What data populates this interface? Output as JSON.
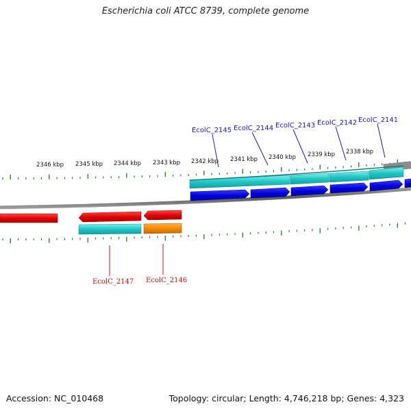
{
  "title": "Escherichia coli ATCC 8739, complete genome",
  "footer": {
    "accession": "Accession: NC_010468",
    "topology": "Topology: circular; Length: 4,746,218 bp; Genes: 4,323"
  },
  "ruler": {
    "labels": [
      "2346 kbp",
      "2345 kbp",
      "2344 kbp",
      "2343 kbp",
      "2342 kbp",
      "2341 kbp",
      "2340 kbp",
      "2339 kbp",
      "2338 kbp"
    ]
  },
  "genes": {
    "forward": [
      "EcolC_2145",
      "EcolC_2144",
      "EcolC_2143",
      "EcolC_2142",
      "EcolC_2141"
    ],
    "reverse": [
      "EcolC_2147",
      "EcolC_2146"
    ]
  },
  "colors": {
    "cds_blue": "#0000dd",
    "gene_cyan": "#22c4c4",
    "cds_red": "#dd0000",
    "gene_orange": "#ee8800",
    "tick_green": "#1a7a1a",
    "backbone": "#808080"
  }
}
